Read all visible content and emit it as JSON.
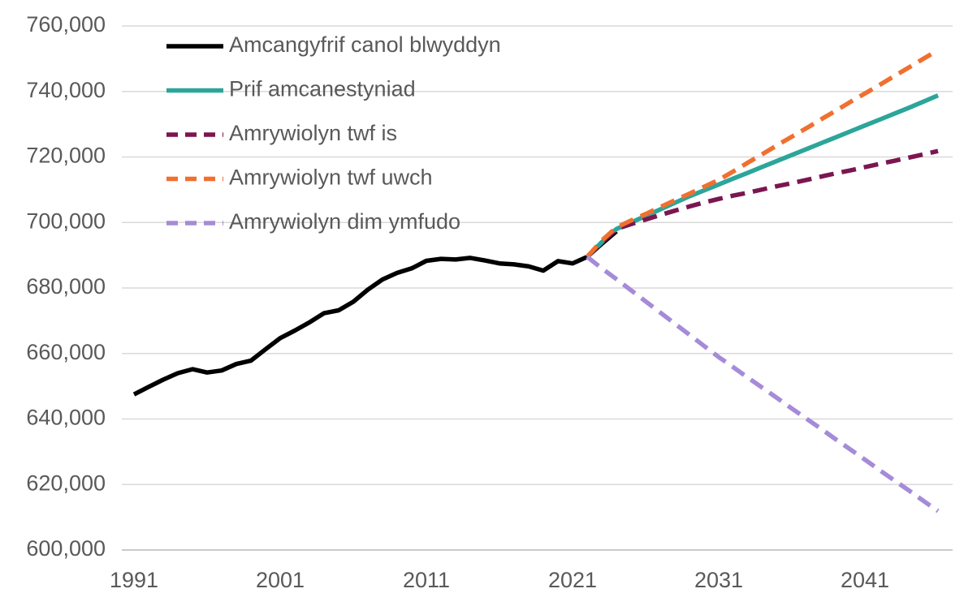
{
  "chart_data": {
    "type": "line",
    "x": [
      1991,
      1992,
      1993,
      1994,
      1995,
      1996,
      1997,
      1998,
      1999,
      2000,
      2001,
      2002,
      2003,
      2004,
      2005,
      2006,
      2007,
      2008,
      2009,
      2010,
      2011,
      2012,
      2013,
      2014,
      2015,
      2016,
      2017,
      2018,
      2019,
      2020,
      2021,
      2022,
      2023,
      2024,
      2025,
      2026,
      2027,
      2028,
      2029,
      2030,
      2031,
      2032,
      2033,
      2034,
      2035,
      2036,
      2037,
      2038,
      2039,
      2040,
      2041,
      2042,
      2043,
      2044,
      2045,
      2046
    ],
    "series": [
      {
        "name": "Amcangyfrif canol blwyddyn",
        "color": "#000000",
        "dashed": false,
        "values": [
          647500,
          649800,
          652000,
          654000,
          655200,
          654200,
          654800,
          656800,
          657800,
          661300,
          664700,
          667000,
          669500,
          672300,
          673200,
          675800,
          679500,
          682600,
          684600,
          686000,
          688300,
          688900,
          688700,
          689200,
          688400,
          687500,
          687200,
          686600,
          685300,
          688200,
          687500,
          689500,
          693500,
          697300,
          null,
          null,
          null,
          null,
          null,
          null,
          null,
          null,
          null,
          null,
          null,
          null,
          null,
          null,
          null,
          null,
          null,
          null,
          null,
          null,
          null,
          null
        ]
      },
      {
        "name": "Prif amcanestyniad",
        "color": "#2ca59a",
        "dashed": false,
        "values": [
          null,
          null,
          null,
          null,
          null,
          null,
          null,
          null,
          null,
          null,
          null,
          null,
          null,
          null,
          null,
          null,
          null,
          null,
          null,
          null,
          null,
          null,
          null,
          null,
          null,
          null,
          null,
          null,
          null,
          null,
          null,
          689500,
          694000,
          698000,
          700000,
          702000,
          704000,
          706000,
          708000,
          709800,
          711600,
          713400,
          715200,
          717000,
          718800,
          720600,
          722400,
          724200,
          726000,
          727800,
          729600,
          731400,
          733200,
          735000,
          736900,
          738800
        ]
      },
      {
        "name": "Amrywiolyn twf is",
        "color": "#7b1650",
        "dashed": true,
        "values": [
          null,
          null,
          null,
          null,
          null,
          null,
          null,
          null,
          null,
          null,
          null,
          null,
          null,
          null,
          null,
          null,
          null,
          null,
          null,
          null,
          null,
          null,
          null,
          null,
          null,
          null,
          null,
          null,
          null,
          null,
          null,
          689500,
          694000,
          698000,
          699500,
          700900,
          702300,
          703600,
          704900,
          706100,
          707200,
          708200,
          709100,
          710100,
          711100,
          712000,
          713000,
          714000,
          715000,
          715900,
          716900,
          717900,
          718800,
          719800,
          720800,
          721800
        ]
      },
      {
        "name": "Amrywiolyn twf uwch",
        "color": "#f07030",
        "dashed": true,
        "values": [
          null,
          null,
          null,
          null,
          null,
          null,
          null,
          null,
          null,
          null,
          null,
          null,
          null,
          null,
          null,
          null,
          null,
          null,
          null,
          null,
          null,
          null,
          null,
          null,
          null,
          null,
          null,
          null,
          null,
          null,
          null,
          689500,
          694500,
          698500,
          700600,
          702600,
          704700,
          706800,
          708800,
          710900,
          713000,
          715600,
          718300,
          720900,
          723600,
          726200,
          728800,
          731500,
          734100,
          736800,
          739400,
          742000,
          744700,
          747300,
          750000,
          752600
        ]
      },
      {
        "name": "Amrywiolyn dim ymfudo",
        "color": "#a58bd8",
        "dashed": true,
        "values": [
          null,
          null,
          null,
          null,
          null,
          null,
          null,
          null,
          null,
          null,
          null,
          null,
          null,
          null,
          null,
          null,
          null,
          null,
          null,
          null,
          null,
          null,
          null,
          null,
          null,
          null,
          null,
          null,
          null,
          null,
          null,
          689500,
          686000,
          682700,
          679300,
          675900,
          672500,
          669100,
          665700,
          662300,
          658900,
          655800,
          652600,
          649500,
          646400,
          643200,
          640100,
          637000,
          633800,
          630700,
          627600,
          624400,
          621300,
          618200,
          615000,
          611900
        ]
      }
    ],
    "xlim": [
      1991,
      2047
    ],
    "xticks": [
      1991,
      2001,
      2011,
      2021,
      2031,
      2041
    ],
    "ylim": [
      600000,
      760000
    ],
    "yticks": [
      {
        "value": 600000,
        "label": "600,000"
      },
      {
        "value": 620000,
        "label": "620,000"
      },
      {
        "value": 640000,
        "label": "640,000"
      },
      {
        "value": 660000,
        "label": "660,000"
      },
      {
        "value": 680000,
        "label": "680,000"
      },
      {
        "value": 700000,
        "label": "700,000"
      },
      {
        "value": 720000,
        "label": "720,000"
      },
      {
        "value": 740000,
        "label": "740,000"
      },
      {
        "value": 760000,
        "label": "760,000"
      }
    ],
    "grid": true,
    "legend": "top-left"
  }
}
